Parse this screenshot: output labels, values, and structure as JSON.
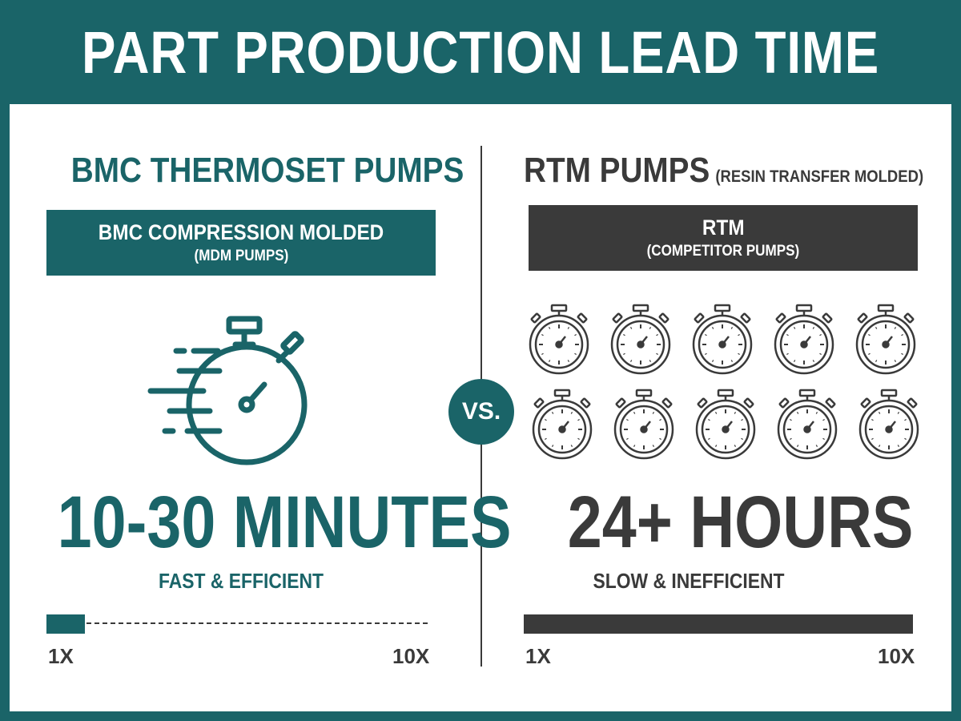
{
  "header": {
    "title": "PART PRODUCTION LEAD TIME"
  },
  "left": {
    "title": "BMC THERMOSET PUMPS",
    "box_line1": "BMC COMPRESSION MOLDED",
    "box_line2": "(MDM PUMPS)",
    "icon": "stopwatch-fast-icon",
    "time": "10-30 MINUTES",
    "tagline": "FAST & EFFICIENT",
    "scale_min": "1X",
    "scale_max": "10X",
    "bar_fraction": 0.1
  },
  "vs": "VS.",
  "right": {
    "title": "RTM PUMPS",
    "title_sub": "(RESIN TRANSFER MOLDED)",
    "box_line1": "RTM",
    "box_line2": "(COMPETITOR PUMPS)",
    "icon": "stopwatch-icon",
    "stopwatch_count": 10,
    "time": "24+ HOURS",
    "tagline": "SLOW & INEFFICIENT",
    "scale_min": "1X",
    "scale_max": "10X",
    "bar_fraction": 1.0
  },
  "colors": {
    "teal": "#1a6468",
    "dark": "#3a3a3a",
    "white": "#ffffff"
  }
}
